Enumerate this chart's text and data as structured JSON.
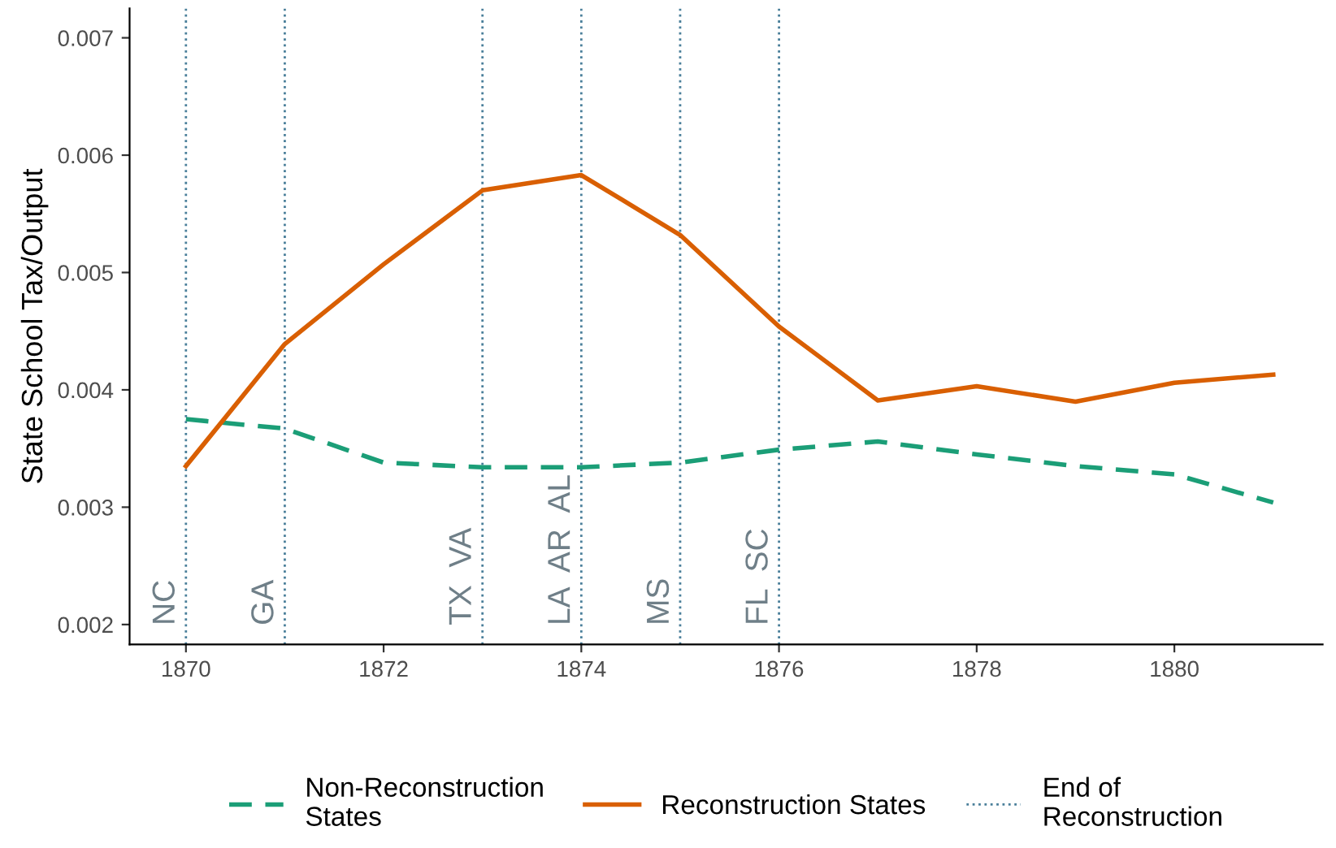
{
  "chart_data": {
    "type": "line",
    "ylabel": "State School Tax/Output",
    "x": [
      1870,
      1871,
      1872,
      1873,
      1874,
      1875,
      1876,
      1877,
      1878,
      1879,
      1880,
      1881
    ],
    "series": [
      {
        "name": "Non-Reconstruction\nStates",
        "color": "#1b9e77",
        "line_style": "dashed",
        "values": [
          0.00375,
          0.00367,
          0.00338,
          0.00334,
          0.00334,
          0.00338,
          0.00349,
          0.00356,
          0.00345,
          0.00335,
          0.00328,
          0.00304
        ]
      },
      {
        "name": "Reconstruction States",
        "color": "#d95f02",
        "line_style": "solid",
        "values": [
          0.00335,
          0.00439,
          0.00507,
          0.0057,
          0.00583,
          0.00532,
          0.00454,
          0.00391,
          0.00403,
          0.0039,
          0.00406,
          0.00413
        ]
      }
    ],
    "ref_lines": [
      {
        "axis": "x",
        "value": 1870,
        "label": "NC",
        "color": "#4a7f9a",
        "line_style": "dotted"
      },
      {
        "axis": "x",
        "value": 1871,
        "label": "GA",
        "color": "#4a7f9a",
        "line_style": "dotted"
      },
      {
        "axis": "x",
        "value": 1873,
        "label": "TX  VA",
        "color": "#4a7f9a",
        "line_style": "dotted"
      },
      {
        "axis": "x",
        "value": 1874,
        "label": "LA  AR  AL",
        "color": "#4a7f9a",
        "line_style": "dotted"
      },
      {
        "axis": "x",
        "value": 1875,
        "label": "MS",
        "color": "#4a7f9a",
        "line_style": "dotted"
      },
      {
        "axis": "x",
        "value": 1876,
        "label": "FL  SC",
        "color": "#4a7f9a",
        "line_style": "dotted"
      }
    ],
    "annotations": [
      "End of\nReconstruction"
    ],
    "xlim": [
      1869.43,
      1881.5
    ],
    "ylim": [
      0.00183,
      0.00725
    ],
    "xticks": [
      1870,
      1872,
      1874,
      1876,
      1878,
      1880
    ],
    "yticks": [
      0.002,
      0.003,
      0.004,
      0.005,
      0.006,
      0.007
    ],
    "grid": false,
    "legend": "bottom",
    "marker": "none"
  }
}
